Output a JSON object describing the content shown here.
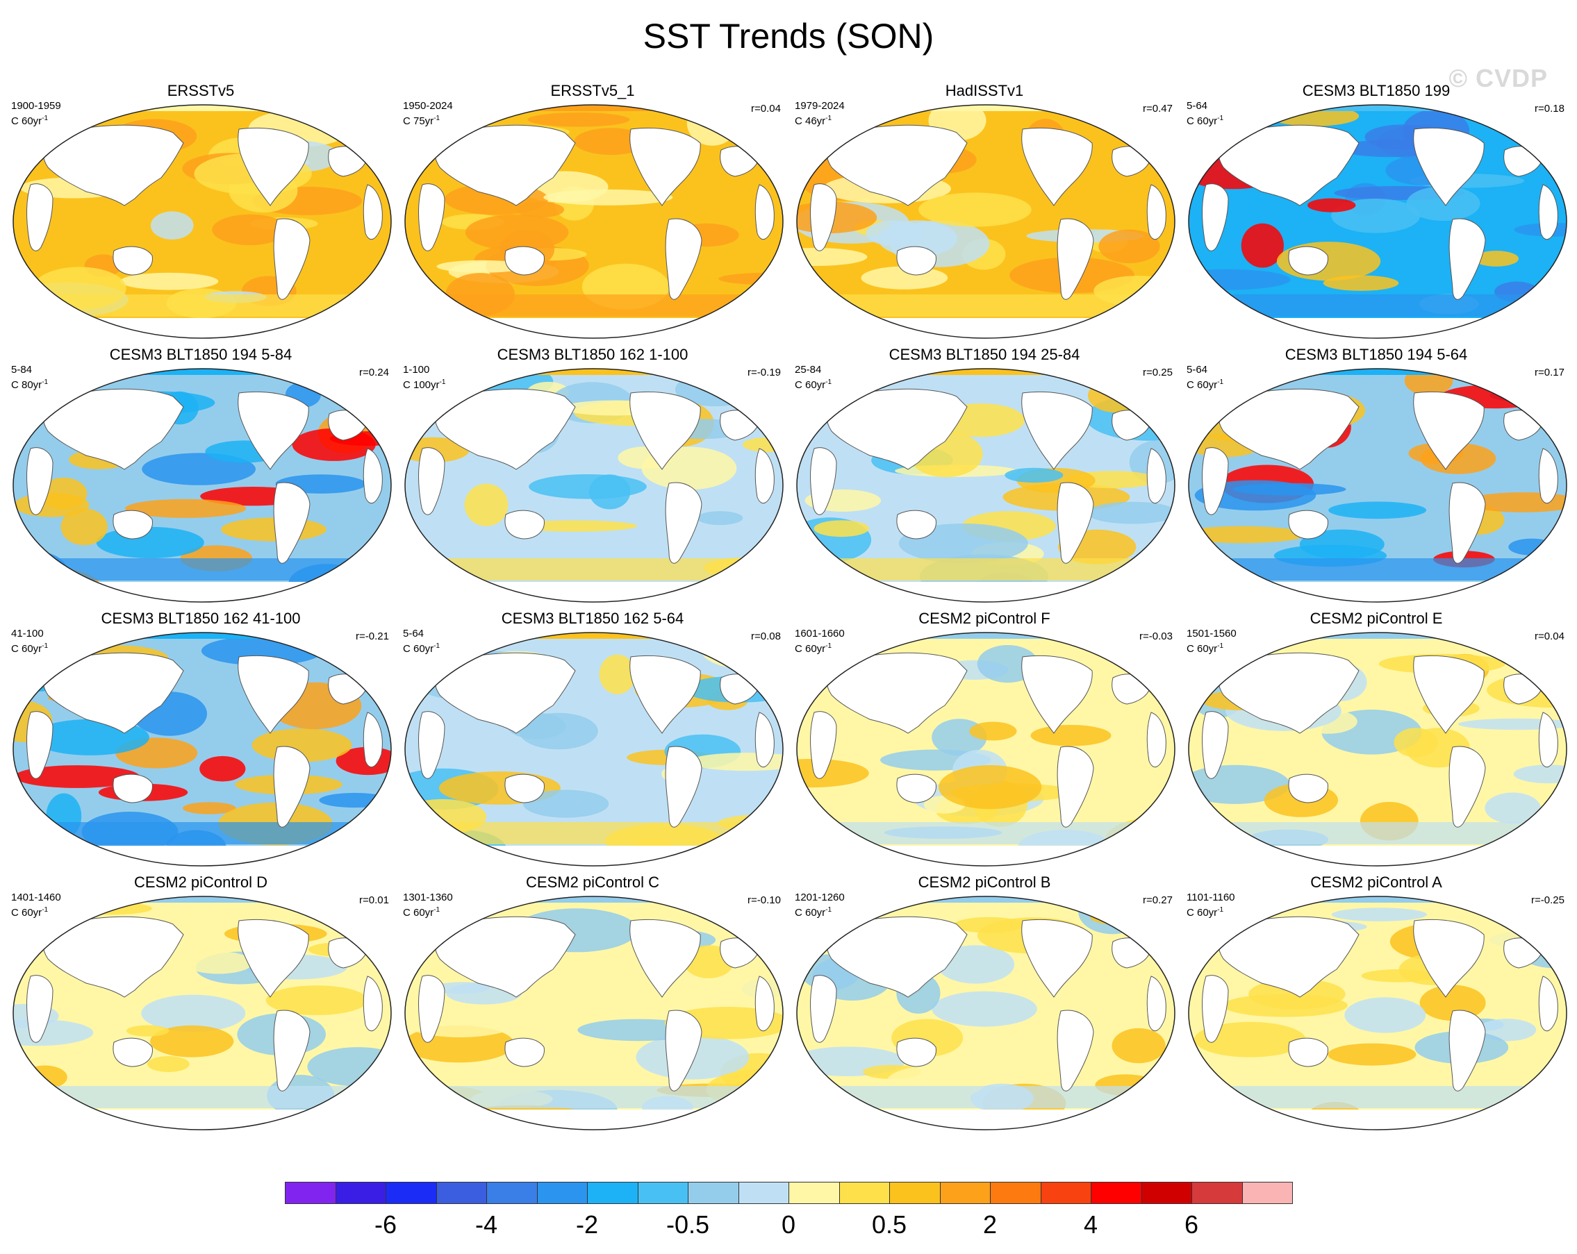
{
  "title": "SST Trends (SON)",
  "watermark": "© CVDP",
  "units_prefix": "C ",
  "panels": [
    {
      "title": "ERSSTv5",
      "period": "1900-1959",
      "n": "60",
      "r": "",
      "scheme": "warm"
    },
    {
      "title": "ERSSTv5_1",
      "period": "1950-2024",
      "n": "75",
      "r": "r=0.04",
      "scheme": "hotter"
    },
    {
      "title": "HadISSTv1",
      "period": "1979-2024",
      "n": "46",
      "r": "r=0.47",
      "scheme": "warm"
    },
    {
      "title": "CESM3 BLT1850 199",
      "period": "5-64",
      "n": "60",
      "r": "r=0.18",
      "scheme": "cold"
    },
    {
      "title": "CESM3 BLT1850 194 5-84",
      "period": "5-84",
      "n": "80",
      "r": "r=0.24",
      "scheme": "mixed-cold"
    },
    {
      "title": "CESM3 BLT1850 162 1-100",
      "period": "1-100",
      "n": "100",
      "r": "r=-0.19",
      "scheme": "mixed"
    },
    {
      "title": "CESM3 BLT1850 194 25-84",
      "period": "25-84",
      "n": "60",
      "r": "r=0.25",
      "scheme": "mixed"
    },
    {
      "title": "CESM3 BLT1850 194 5-64",
      "period": "5-64",
      "n": "60",
      "r": "r=0.17",
      "scheme": "mixed-cold"
    },
    {
      "title": "CESM3 BLT1850 162 41-100",
      "period": "41-100",
      "n": "60",
      "r": "r=-0.21",
      "scheme": "mixed-cold"
    },
    {
      "title": "CESM3 BLT1850 162 5-64",
      "period": "5-64",
      "n": "60",
      "r": "r=0.08",
      "scheme": "mixed"
    },
    {
      "title": "CESM2 piControl F",
      "period": "1601-1660",
      "n": "60",
      "r": "r=-0.03",
      "scheme": "mild"
    },
    {
      "title": "CESM2 piControl E",
      "period": "1501-1560",
      "n": "60",
      "r": "r=0.04",
      "scheme": "mild"
    },
    {
      "title": "CESM2 piControl D",
      "period": "1401-1460",
      "n": "60",
      "r": "r=0.01",
      "scheme": "mild"
    },
    {
      "title": "CESM2 piControl C",
      "period": "1301-1360",
      "n": "60",
      "r": "r=-0.10",
      "scheme": "mild"
    },
    {
      "title": "CESM2 piControl B",
      "period": "1201-1260",
      "n": "60",
      "r": "r=0.27",
      "scheme": "mild"
    },
    {
      "title": "CESM2 piControl A",
      "period": "1101-1160",
      "n": "60",
      "r": "r=-0.25",
      "scheme": "mild"
    }
  ],
  "colorbar": {
    "colors": [
      "#8224f0",
      "#3a1ee6",
      "#1a2cf5",
      "#3b5ee0",
      "#3a7ee8",
      "#2a94ee",
      "#1cb2f5",
      "#49c0f3",
      "#94cdec",
      "#bfe0f4",
      "#fff7a6",
      "#fee04a",
      "#fbc21e",
      "#fda11b",
      "#fc7a10",
      "#f8420f",
      "#fe0000",
      "#d00000",
      "#d63a3a",
      "#fab4b4"
    ],
    "labels": [
      {
        "text": "-6",
        "boundary": 2
      },
      {
        "text": "-4",
        "boundary": 4
      },
      {
        "text": "-2",
        "boundary": 6
      },
      {
        "text": "-0.5",
        "boundary": 8
      },
      {
        "text": "0",
        "boundary": 10
      },
      {
        "text": "0.5",
        "boundary": 12
      },
      {
        "text": "2",
        "boundary": 14
      },
      {
        "text": "4",
        "boundary": 16
      },
      {
        "text": "6",
        "boundary": 18
      }
    ]
  }
}
